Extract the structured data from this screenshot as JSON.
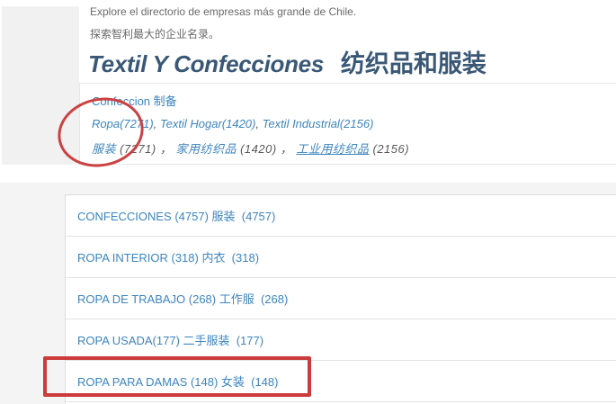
{
  "colors": {
    "link_blue": "#3d85c0",
    "heading_blue": "#3a5876",
    "annotation_red": "#cb4142",
    "intro_gray": "#6a6a6a",
    "panel_border": "#dcdcdc",
    "page_band_gray": "#f4f4f4"
  },
  "intro": {
    "line_es": "Explore el directorio de empresas más grande de Chile.",
    "line_zh": "探索智利最大的企业名录。"
  },
  "heading": {
    "es": "Textil Y Confecciones",
    "zh": "纺织品和服装"
  },
  "category_box": {
    "title": "Confeccion 制备",
    "es_segments": [
      {
        "text": "Ropa(7271)"
      },
      {
        "text": ", "
      },
      {
        "text": "Textil Hogar(1420)"
      },
      {
        "text": ", "
      },
      {
        "text": "Textil Industrial(2156)"
      }
    ],
    "zh_segments": [
      {
        "text": "服装"
      },
      {
        "text": " (7271) ， "
      },
      {
        "text": "家用纺织品"
      },
      {
        "text": " (1420) ， "
      },
      {
        "text": "工业用纺织品"
      },
      {
        "text": " (2156)"
      }
    ]
  },
  "category_list": {
    "rows": [
      {
        "label": "CONFECCIONES (4757) 服装  (4757)"
      },
      {
        "label": "ROPA INTERIOR (318) 内衣  (318)"
      },
      {
        "label": "ROPA DE TRABAJO (268) 工作服  (268)"
      },
      {
        "label": "ROPA USADA(177) 二手服装  (177)"
      },
      {
        "label": "ROPA PARA DAMAS (148) 女装  (148)"
      }
    ]
  }
}
